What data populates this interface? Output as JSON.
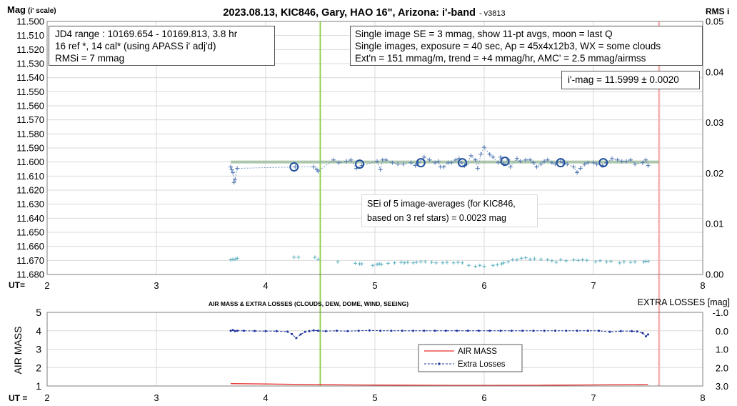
{
  "title_main": "2023.08.13, KIC846, Gary, HAO 16\", Arizona: i'-band",
  "title_version": "- v3813",
  "ylabel_main": "Mag",
  "ylabel_main_sub": "(i' scale)",
  "ylabel_right": "RMS i",
  "ut_label_top": "UT=",
  "ut_label_bottom": "UT =",
  "info_left": [
    "JD4 range : 10169.654 - 10169.813, 3.8  hr",
    "16 ref *, 14 cal* (using APASS i' adj'd)",
    "RMSi = 7 mmag"
  ],
  "info_right": [
    "Single image SE = 3 mmag, show 11-pt avgs, moon = last Q",
    "Single images, exposure = 40 sec, Ap = 45x4x12b3, WX = some clouds",
    "Ext'n = 151 mmag/m, trend = +4 mmag/hr, AMC' = 2.5 mmag/airmss"
  ],
  "imag_box": "i'-mag = 11.5999 ± 0.0020",
  "sei_box": [
    "SEi of 5 image-averages (for KIC846,",
    "based on 3 ref stars) = 0.0023 mag"
  ],
  "lower_title": "AIR MASS & EXTRA LOSSES (CLOUDS, DEW, DOME, WIND, SEEING)",
  "lower_ylabel": "AIR MASS",
  "lower_right_title": "EXTRA LOSSES [mag]",
  "legend": [
    {
      "name": "AIR MASS",
      "color": "#e8322f"
    },
    {
      "name": "Extra Losses",
      "color": "#1a2f9c"
    }
  ],
  "colors": {
    "points": "#5b7fb5",
    "avg_circle": "#1f4e9c",
    "rms_points": "#5bb0c0",
    "fit_line": "#7a9a7a",
    "green_marker": "#92d050",
    "red_marker": "#f4b8b8",
    "airmass": "#e8322f",
    "losses": "#1a2f9c"
  },
  "chart_data": [
    {
      "type": "scatter",
      "title": "2023.08.13, KIC846, Gary, HAO 16\", Arizona: i'-band",
      "xlabel": "UT=",
      "ylabel": "Mag (i' scale)",
      "ylabel_right": "RMS i",
      "xlim": [
        2,
        8
      ],
      "ylim": [
        11.68,
        11.5
      ],
      "y_inverted": true,
      "y_ticks": [
        11.5,
        11.51,
        11.52,
        11.53,
        11.54,
        11.55,
        11.56,
        11.57,
        11.58,
        11.59,
        11.6,
        11.61,
        11.62,
        11.63,
        11.64,
        11.65,
        11.66,
        11.67,
        11.68
      ],
      "y_tick_labels": [
        "11.500",
        "11.510",
        "11.520",
        "11.530",
        "11.540",
        "11.550",
        "11.560",
        "11.570",
        "11.580",
        "11.590",
        "11.600",
        "11.610",
        "11.620",
        "11.630",
        "11.640",
        "11.650",
        "11.660",
        "11.670",
        "11.680"
      ],
      "x_ticks": [
        2,
        3,
        4,
        5,
        6,
        7,
        8
      ],
      "y2lim": [
        0,
        0.05
      ],
      "y2_ticks": [
        0,
        0.01,
        0.02,
        0.03,
        0.04,
        0.05
      ],
      "y2_tick_labels": [
        "0.00",
        "0.01",
        "0.02",
        "0.03",
        "0.04",
        "0.05"
      ],
      "grid": true,
      "vertical_markers": [
        4.5,
        7.6
      ],
      "fit_line": {
        "x": [
          3.68,
          7.6
        ],
        "y": [
          11.6,
          11.6
        ]
      },
      "series": [
        {
          "name": "single images",
          "x": [
            3.68,
            3.69,
            3.7,
            3.71,
            3.72,
            3.74,
            4.27,
            4.44,
            4.47,
            4.48,
            4.62,
            4.67,
            4.74,
            4.78,
            4.83,
            4.88,
            5.02,
            5.05,
            5.07,
            5.1,
            5.16,
            5.21,
            5.26,
            5.33,
            5.37,
            5.4,
            5.45,
            5.5,
            5.55,
            5.58,
            5.6,
            5.63,
            5.67,
            5.7,
            5.74,
            5.77,
            5.79,
            5.82,
            5.84,
            5.88,
            5.92,
            5.94,
            5.97,
            6.0,
            6.05,
            6.08,
            6.13,
            6.15,
            6.18,
            6.22,
            6.24,
            6.3,
            6.33,
            6.38,
            6.42,
            6.45,
            6.48,
            6.52,
            6.55,
            6.58,
            6.62,
            6.65,
            6.7,
            6.72,
            6.76,
            6.82,
            6.85,
            6.88,
            6.92,
            6.95,
            7.0,
            7.03,
            7.08,
            7.12,
            7.17,
            7.22,
            7.26,
            7.3,
            7.34,
            7.38,
            7.45,
            7.48,
            7.5
          ],
          "y": [
            11.6035,
            11.6055,
            11.6075,
            11.6145,
            11.6125,
            11.6045,
            11.6035,
            11.6035,
            11.6055,
            11.6065,
            11.5985,
            11.6005,
            11.5995,
            11.5985,
            11.6045,
            11.6025,
            11.5995,
            11.6055,
            11.5985,
            11.5985,
            11.6005,
            11.6015,
            11.6015,
            11.6005,
            11.6025,
            11.6005,
            11.5965,
            11.5985,
            11.6005,
            11.5995,
            11.6035,
            11.6035,
            11.6005,
            11.6005,
            11.5985,
            11.5975,
            11.6005,
            11.6025,
            11.6015,
            11.5955,
            11.5985,
            11.6045,
            11.5945,
            11.5895,
            11.5945,
            11.5965,
            11.6005,
            11.5965,
            11.6015,
            11.5985,
            11.6035,
            11.5975,
            11.5995,
            11.5985,
            11.5985,
            11.6005,
            11.6035,
            11.6015,
            11.5995,
            11.5985,
            11.6005,
            11.6015,
            11.5995,
            11.6005,
            11.6015,
            11.6035,
            11.6075,
            11.6045,
            11.6015,
            11.6005,
            11.6005,
            11.6015,
            11.6025,
            11.6005,
            11.5975,
            11.5985,
            11.5995,
            11.5995,
            11.5985,
            11.6015,
            11.6005,
            11.5985,
            11.6025
          ]
        },
        {
          "name": "11-pt avgs",
          "x": [
            4.26,
            4.86,
            5.42,
            5.8,
            6.19,
            6.7,
            7.09
          ],
          "y": [
            11.6035,
            11.6015,
            11.6005,
            11.6005,
            11.5995,
            11.6005,
            11.6005
          ]
        },
        {
          "name": "RMS i",
          "axis": "right",
          "x": [
            3.68,
            3.7,
            3.72,
            3.74,
            4.26,
            4.3,
            4.45,
            4.48,
            4.66,
            4.82,
            4.86,
            4.88,
            4.98,
            5.02,
            5.04,
            5.06,
            5.12,
            5.18,
            5.24,
            5.27,
            5.3,
            5.35,
            5.38,
            5.42,
            5.46,
            5.52,
            5.56,
            5.62,
            5.66,
            5.72,
            5.76,
            5.8,
            5.86,
            5.92,
            5.96,
            6.0,
            6.08,
            6.12,
            6.16,
            6.18,
            6.22,
            6.26,
            6.3,
            6.34,
            6.38,
            6.42,
            6.46,
            6.52,
            6.58,
            6.62,
            6.66,
            6.7,
            6.75,
            6.82,
            6.86,
            6.9,
            6.94,
            7.02,
            7.06,
            7.12,
            7.16,
            7.24,
            7.28,
            7.34,
            7.38,
            7.46,
            7.48,
            7.5
          ],
          "y": [
            0.0029,
            0.003,
            0.003,
            0.0032,
            0.0034,
            0.0034,
            0.0034,
            0.003,
            0.0025,
            0.0022,
            0.0021,
            0.0021,
            0.0018,
            0.002,
            0.0021,
            0.002,
            0.0022,
            0.0023,
            0.0024,
            0.0023,
            0.0024,
            0.0023,
            0.0024,
            0.0025,
            0.0025,
            0.0024,
            0.0023,
            0.0023,
            0.0024,
            0.0023,
            0.0024,
            0.0023,
            0.0018,
            0.0016,
            0.0018,
            0.0016,
            0.0018,
            0.0019,
            0.0021,
            0.0023,
            0.0025,
            0.0029,
            0.0029,
            0.0032,
            0.0033,
            0.003,
            0.0031,
            0.003,
            0.0029,
            0.0027,
            0.0024,
            0.0029,
            0.0027,
            0.0029,
            0.0028,
            0.0029,
            0.0028,
            0.0025,
            0.0027,
            0.0025,
            0.0026,
            0.0023,
            0.0025,
            0.0024,
            0.0025,
            0.0025,
            0.0026,
            0.0026
          ]
        }
      ]
    },
    {
      "type": "line",
      "title": "AIR MASS & EXTRA LOSSES (CLOUDS, DEW, DOME, WIND, SEEING)",
      "xlabel": "UT =",
      "ylabel": "AIR MASS",
      "ylabel_right": "EXTRA LOSSES [mag]",
      "xlim": [
        2,
        8
      ],
      "ylim": [
        1,
        5
      ],
      "y_ticks": [
        1,
        2,
        3,
        4,
        5
      ],
      "y_tick_labels": [
        "1",
        "2",
        "3",
        "4",
        "5"
      ],
      "x_ticks": [
        2,
        3,
        4,
        5,
        6,
        7,
        8
      ],
      "y2lim": [
        3.0,
        -1.0
      ],
      "y2_ticks": [
        -1.0,
        0.0,
        1.0,
        2.0,
        3.0
      ],
      "y2_tick_labels": [
        "-1.0",
        "0.0",
        "1.0",
        "2.0",
        "3.0"
      ],
      "grid": true,
      "legend_position": "center",
      "vertical_markers": [
        4.5,
        7.6
      ],
      "series": [
        {
          "name": "AIR MASS",
          "x": [
            3.68,
            4.0,
            4.5,
            5.0,
            5.5,
            6.0,
            6.5,
            7.0,
            7.5
          ],
          "y": [
            1.13,
            1.11,
            1.07,
            1.05,
            1.04,
            1.03,
            1.04,
            1.06,
            1.08
          ]
        },
        {
          "name": "Extra Losses",
          "axis": "right",
          "x": [
            3.68,
            3.7,
            3.72,
            3.74,
            3.8,
            3.9,
            4.0,
            4.1,
            4.2,
            4.24,
            4.28,
            4.32,
            4.36,
            4.4,
            4.44,
            4.48,
            4.55,
            4.65,
            4.75,
            4.85,
            4.95,
            5.05,
            5.15,
            5.25,
            5.35,
            5.45,
            5.55,
            5.65,
            5.75,
            5.85,
            5.95,
            6.05,
            6.15,
            6.25,
            6.35,
            6.45,
            6.55,
            6.65,
            6.75,
            6.85,
            6.95,
            7.05,
            7.15,
            7.25,
            7.35,
            7.4,
            7.45,
            7.48,
            7.5
          ],
          "y": [
            0.0,
            -0.04,
            0.02,
            0.0,
            0.0,
            0.01,
            0.02,
            0.02,
            0.05,
            0.18,
            0.4,
            0.2,
            0.06,
            0.02,
            -0.02,
            0.0,
            0.02,
            0.0,
            0.02,
            0.0,
            -0.02,
            0.0,
            0.0,
            0.0,
            0.0,
            0.0,
            0.0,
            0.0,
            0.0,
            0.0,
            0.0,
            0.0,
            0.0,
            0.0,
            0.0,
            0.0,
            0.0,
            0.0,
            0.0,
            0.0,
            0.0,
            0.0,
            0.06,
            0.02,
            0.02,
            0.04,
            0.12,
            0.3,
            0.2
          ]
        }
      ]
    }
  ]
}
